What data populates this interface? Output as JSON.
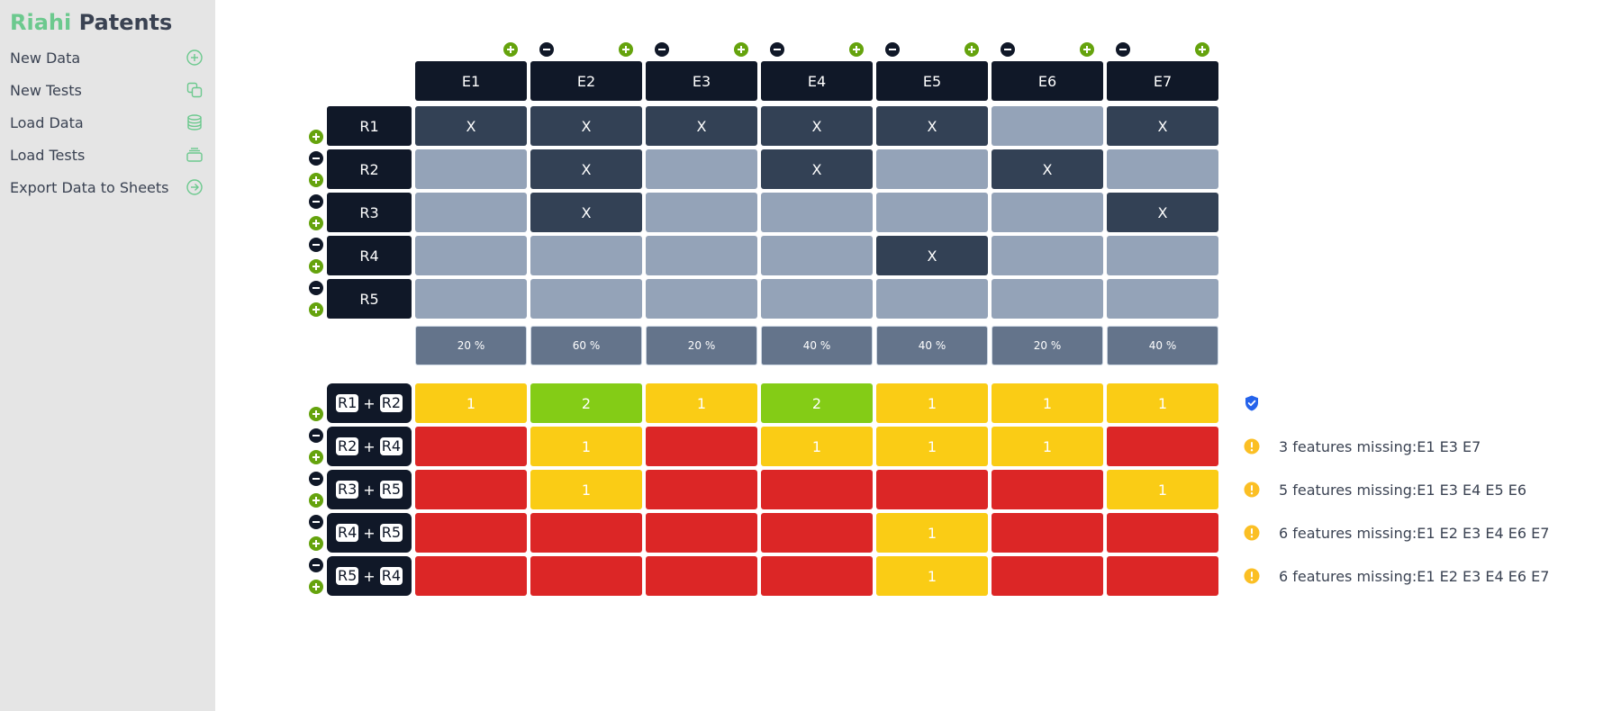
{
  "brand": {
    "part1": "Riahi",
    "part2": "Patents"
  },
  "menu": [
    {
      "label": "New Data",
      "icon": "plus-circle-icon"
    },
    {
      "label": "New Tests",
      "icon": "copy-icon"
    },
    {
      "label": "Load Data",
      "icon": "database-icon"
    },
    {
      "label": "Load Tests",
      "icon": "stack-icon"
    },
    {
      "label": "Export Data to Sheets",
      "icon": "arrow-right-circle-icon"
    }
  ],
  "columns": [
    "E1",
    "E2",
    "E3",
    "E4",
    "E5",
    "E6",
    "E7"
  ],
  "rows": [
    {
      "label": "R1",
      "cells": [
        "X",
        "X",
        "X",
        "X",
        "X",
        "",
        "X"
      ]
    },
    {
      "label": "R2",
      "cells": [
        "",
        "X",
        "",
        "X",
        "",
        "X",
        ""
      ]
    },
    {
      "label": "R3",
      "cells": [
        "",
        "X",
        "",
        "",
        "",
        "",
        "X"
      ]
    },
    {
      "label": "R4",
      "cells": [
        "",
        "",
        "",
        "",
        "X",
        "",
        ""
      ]
    },
    {
      "label": "R5",
      "cells": [
        "",
        "",
        "",
        "",
        "",
        "",
        ""
      ]
    }
  ],
  "percentages": [
    "20 %",
    "60 %",
    "20 %",
    "40 %",
    "40 %",
    "20 %",
    "40 %"
  ],
  "combos": [
    {
      "a": "R1",
      "plus": "+",
      "b": "R2",
      "values": [
        "1",
        "2",
        "1",
        "2",
        "1",
        "1",
        "1"
      ],
      "status": "ok",
      "message": ""
    },
    {
      "a": "R2",
      "plus": "+",
      "b": "R4",
      "values": [
        "",
        "1",
        "",
        "1",
        "1",
        "1",
        ""
      ],
      "status": "warn",
      "message": "3 features missing:E1 E3 E7"
    },
    {
      "a": "R3",
      "plus": "+",
      "b": "R5",
      "values": [
        "",
        "1",
        "",
        "",
        "",
        "",
        "1"
      ],
      "status": "warn",
      "message": "5 features missing:E1 E3 E4 E5 E6"
    },
    {
      "a": "R4",
      "plus": "+",
      "b": "R5",
      "values": [
        "",
        "",
        "",
        "",
        "1",
        "",
        ""
      ],
      "status": "warn",
      "message": "6 features missing:E1 E2 E3 E4 E6 E7"
    },
    {
      "a": "R5",
      "plus": "+",
      "b": "R4",
      "values": [
        "",
        "",
        "",
        "",
        "1",
        "",
        ""
      ],
      "status": "warn",
      "message": "6 features missing:E1 E2 E3 E4 E6 E7"
    }
  ],
  "colors": {
    "accent": "#6cc98e",
    "header": "#101828",
    "marked": "#334155",
    "unmarked": "#94a3b8",
    "percent": "#64748b",
    "one": "#facc15",
    "two": "#84cc16",
    "zero": "#dc2626",
    "add": "#65a30d",
    "ok": "#2563eb",
    "warn": "#fbbf24"
  }
}
